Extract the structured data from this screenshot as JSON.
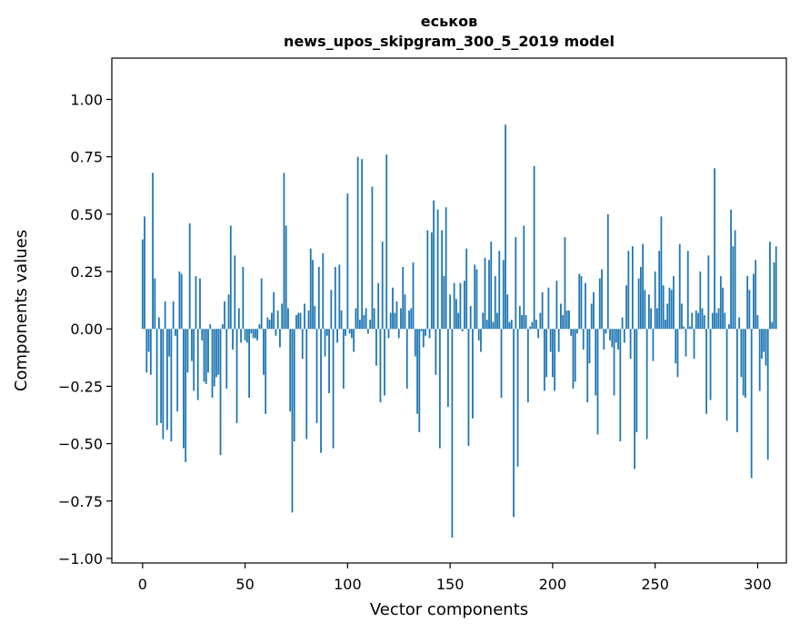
{
  "chart_data": {
    "type": "bar",
    "title_line1": "еськов",
    "title_line2": "news_upos_skipgram_300_5_2019 model",
    "xlabel": "Vector components",
    "ylabel": "Components values",
    "xlim": [
      -15,
      314
    ],
    "ylim": [
      -1.02,
      1.18
    ],
    "xticks": [
      0,
      50,
      100,
      150,
      200,
      250,
      300
    ],
    "yticks": [
      -1.0,
      -0.75,
      -0.5,
      -0.25,
      0.0,
      0.25,
      0.5,
      0.75,
      1.0
    ],
    "ytick_labels": [
      "−1.00",
      "−0.75",
      "−0.50",
      "−0.25",
      "0.00",
      "0.25",
      "0.50",
      "0.75",
      "1.00"
    ],
    "bar_color": "#1f77b4",
    "values": [
      0.39,
      0.49,
      -0.19,
      -0.1,
      -0.2,
      0.68,
      0.22,
      -0.42,
      0.05,
      -0.41,
      -0.48,
      0.12,
      -0.44,
      -0.12,
      -0.49,
      0.12,
      -0.03,
      -0.36,
      0.25,
      0.24,
      -0.52,
      -0.58,
      -0.19,
      0.46,
      -0.14,
      -0.27,
      0.23,
      -0.31,
      0.22,
      -0.05,
      -0.23,
      -0.24,
      -0.19,
      0.02,
      -0.3,
      -0.25,
      -0.21,
      -0.2,
      -0.55,
      0.02,
      0.12,
      -0.26,
      0.15,
      0.45,
      -0.09,
      0.32,
      -0.41,
      0.09,
      -0.06,
      0.27,
      -0.05,
      -0.06,
      -0.3,
      -0.02,
      -0.04,
      -0.04,
      -0.05,
      0.02,
      0.22,
      -0.2,
      -0.37,
      0.05,
      0.04,
      0.07,
      0.16,
      -0.03,
      0.08,
      -0.08,
      0.11,
      0.68,
      0.45,
      0.09,
      -0.36,
      -0.8,
      -0.49,
      0.06,
      0.07,
      0.07,
      -0.13,
      0.11,
      -0.48,
      0.08,
      0.35,
      0.3,
      0.1,
      -0.41,
      0.27,
      -0.54,
      0.33,
      -0.12,
      -0.03,
      -0.28,
      0.17,
      -0.52,
      0.27,
      -0.06,
      0.28,
      0.08,
      -0.26,
      -0.03,
      0.59,
      -0.02,
      -0.04,
      -0.1,
      0.09,
      0.75,
      0.04,
      0.74,
      0.06,
      0.09,
      -0.02,
      0.04,
      0.62,
      0.09,
      -0.16,
      0.2,
      -0.32,
      0.38,
      -0.29,
      0.76,
      -0.04,
      0.07,
      0.18,
      0.07,
      0.12,
      -0.04,
      0.09,
      0.27,
      0.15,
      -0.26,
      0.08,
      0.09,
      0.29,
      -0.12,
      -0.37,
      -0.45,
      -0.01,
      -0.08,
      -0.03,
      0.43,
      -0.04,
      0.42,
      0.56,
      -0.2,
      0.52,
      -0.52,
      0.43,
      0.23,
      0.53,
      -0.34,
      0.15,
      -0.91,
      0.2,
      0.13,
      0.07,
      0.2,
      -0.01,
      0.21,
      0.35,
      -0.51,
      0.1,
      -0.39,
      0.28,
      0.26,
      -0.05,
      -0.1,
      0.07,
      0.31,
      0.04,
      0.3,
      0.38,
      0.03,
      0.23,
      0.07,
      0.34,
      -0.3,
      0.3,
      0.89,
      0.15,
      0.03,
      0.04,
      -0.82,
      0.4,
      -0.6,
      0.1,
      0.06,
      0.45,
      0.06,
      -0.32,
      0.01,
      0.03,
      0.71,
      0.04,
      -0.04,
      0.07,
      0.16,
      -0.27,
      -0.21,
      0.18,
      -0.1,
      -0.21,
      -0.27,
      0.21,
      -0.1,
      0.11,
      0.06,
      0.4,
      0.08,
      0.08,
      -0.03,
      -0.26,
      -0.23,
      -0.02,
      0.24,
      0.23,
      -0.09,
      0.2,
      -0.32,
      -0.15,
      0.11,
      0.16,
      -0.29,
      -0.46,
      0.22,
      0.26,
      -0.09,
      -0.02,
      0.5,
      -0.05,
      -0.08,
      -0.29,
      -0.06,
      -0.09,
      -0.49,
      0.05,
      -0.06,
      0.19,
      0.34,
      -0.13,
      0.36,
      -0.61,
      -0.45,
      0.22,
      0.27,
      0.37,
      0.17,
      -0.48,
      0.15,
      0.09,
      -0.14,
      0.25,
      0.09,
      0.34,
      0.49,
      0.19,
      0.04,
      0.11,
      0.18,
      0.17,
      0.23,
      -0.15,
      -0.21,
      0.37,
      0.11,
      0.01,
      -0.12,
      0.34,
      0.01,
      0.07,
      -0.13,
      0.08,
      0.07,
      0.25,
      0.09,
      0.06,
      -0.37,
      0.32,
      -0.31,
      0.07,
      0.7,
      0.07,
      0.09,
      0.23,
      0.18,
      0.07,
      -0.4,
      0.02,
      0.52,
      0.36,
      0.43,
      -0.45,
      0.05,
      -0.21,
      -0.29,
      -0.3,
      0.23,
      0.17,
      -0.65,
      0.24,
      0.3,
      0.06,
      -0.27,
      -0.13,
      -0.1,
      -0.16,
      -0.57,
      0.38,
      0.03,
      0.29,
      0.36
    ]
  }
}
